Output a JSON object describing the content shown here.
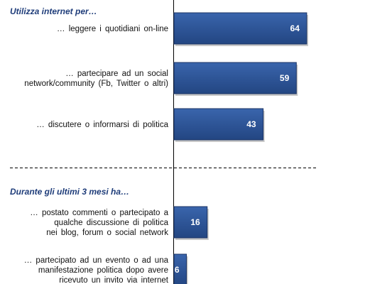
{
  "chart_data": {
    "type": "bar",
    "orientation": "horizontal",
    "value_scale_max": 100,
    "bar_color": "#2e5597",
    "bar_edge_color": "#1c3566",
    "value_label_color": "#ffffff",
    "title_color": "#1f3d7a",
    "groups": [
      {
        "title": "Utilizza internet per…",
        "categories": [
          [
            "… leggere i quotidiani on-line"
          ],
          [
            "… partecipare ad un social",
            "network/community (Fb, Twitter o altri)"
          ],
          [
            "… discutere o informarsi di politica"
          ]
        ],
        "values": [
          64,
          59,
          43
        ]
      },
      {
        "title": "Durante gli ultimi 3 mesi ha…",
        "categories": [
          [
            "… postato commenti o partecipato a",
            "qualche discussione di politica",
            "nei blog, forum o social network"
          ],
          [
            "… partecipato ad un evento o ad una",
            "manifestazione politica dopo avere",
            "ricevuto un invito via internet"
          ]
        ],
        "values": [
          16,
          6
        ]
      }
    ]
  }
}
